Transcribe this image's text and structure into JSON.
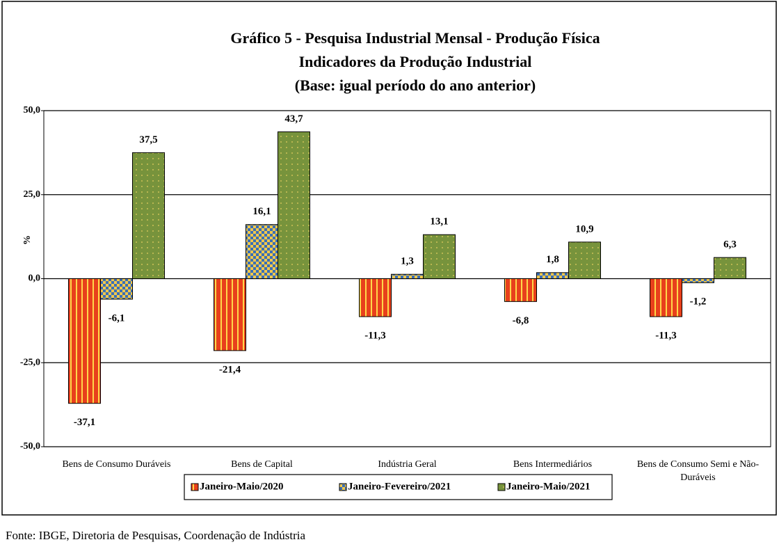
{
  "chart_data": {
    "type": "bar",
    "title": "Gráfico 5 - Pesquisa Industrial Mensal - Produção Física",
    "subtitle": [
      "Indicadores da Produção Industrial",
      "(Base: igual período do ano anterior)"
    ],
    "y_label": "%",
    "categories": [
      "Bens de Consumo Duráveis",
      "Bens de Capital",
      "Indústria Geral",
      "Bens Intermediários",
      "Bens de Consumo Semi e Não-Duráveis"
    ],
    "series": [
      {
        "name": "Janeiro-Maio/2020",
        "color": "#e8401c",
        "values": [
          -37.1,
          -21.4,
          -11.3,
          -6.8,
          -11.3
        ],
        "value_labels": [
          "-37,1",
          "-21,4",
          "-11,3",
          "-6,8",
          "-11,3"
        ]
      },
      {
        "name": "Janeiro-Fevereiro/2021",
        "color": "#3b6fb6",
        "values": [
          -6.1,
          16.1,
          1.3,
          1.8,
          -1.2
        ],
        "value_labels": [
          "-6,1",
          "16,1",
          "1,3",
          "1,8",
          "-1,2"
        ]
      },
      {
        "name": "Janeiro-Maio/2021",
        "color": "#77933c",
        "values": [
          37.5,
          43.7,
          13.1,
          10.9,
          6.3
        ],
        "value_labels": [
          "37,5",
          "43,7",
          "13,1",
          "10,9",
          "6,3"
        ]
      }
    ],
    "ylim": [
      -50,
      50
    ],
    "yticks": [
      {
        "value": -50,
        "label": "-50,0"
      },
      {
        "value": -25,
        "label": "-25,0"
      },
      {
        "value": 0,
        "label": "0,0"
      },
      {
        "value": 25,
        "label": "25,0"
      },
      {
        "value": 50,
        "label": "50,0"
      }
    ],
    "grid": true,
    "legend": "bottom",
    "source": "Fonte: IBGE, Diretoria de Pesquisas, Coordenação de Indústria"
  }
}
